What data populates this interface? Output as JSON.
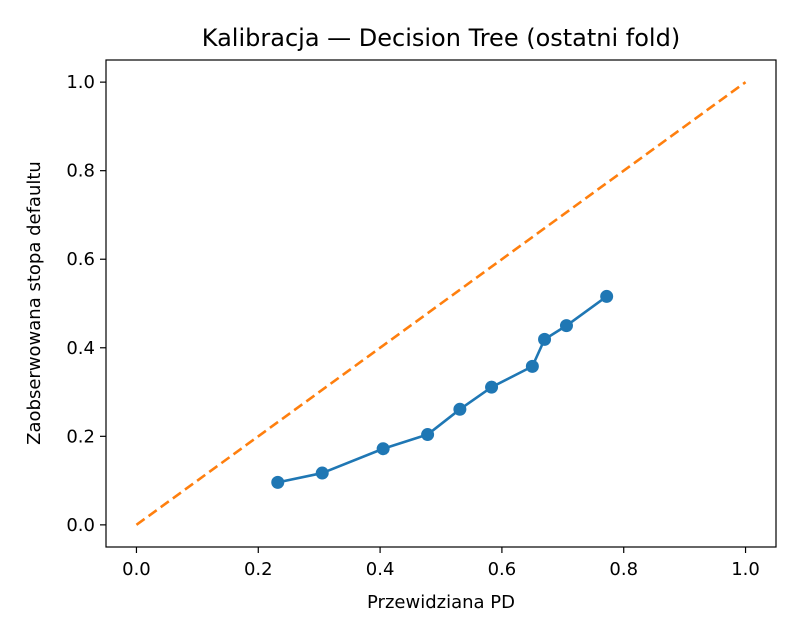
{
  "chart_data": {
    "type": "line",
    "title": "Kalibracja — Decision Tree (ostatni fold)",
    "xlabel": "Przewidziana PD",
    "ylabel": "Zaobserwowana stopa defaultu",
    "xlim": [
      -0.05,
      1.05
    ],
    "ylim": [
      -0.05,
      1.05
    ],
    "xticks": [
      "0.0",
      "0.2",
      "0.4",
      "0.6",
      "0.8",
      "1.0"
    ],
    "yticks": [
      "0.0",
      "0.2",
      "0.4",
      "0.6",
      "0.8",
      "1.0"
    ],
    "grid": false,
    "series": [
      {
        "color": "#1f77b4",
        "style": "solid",
        "marker": "circle",
        "x": [
          0.232,
          0.305,
          0.405,
          0.478,
          0.531,
          0.583,
          0.65,
          0.67,
          0.706,
          0.772
        ],
        "y": [
          0.096,
          0.117,
          0.172,
          0.204,
          0.261,
          0.311,
          0.358,
          0.419,
          0.45,
          0.516
        ]
      },
      {
        "color": "#ff7f0e",
        "style": "dashed",
        "marker": "none",
        "x": [
          0.0,
          1.0
        ],
        "y": [
          0.0,
          1.0
        ]
      }
    ]
  }
}
